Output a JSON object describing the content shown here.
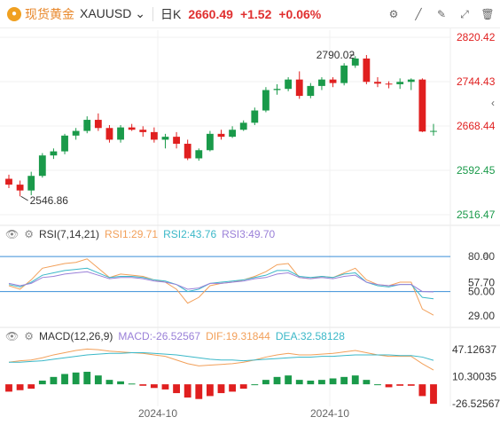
{
  "header": {
    "brand": "现货黄金",
    "symbol": "XAUUSD",
    "period": "日K",
    "price": "2660.49",
    "change": "+1.52",
    "change_pct": "+0.06%"
  },
  "price_axis": [
    "2820.42",
    "2744.43",
    "2668.44",
    "2592.45",
    "2516.47"
  ],
  "annotations": {
    "high": "2790.02",
    "low": "2546.86"
  },
  "rsi": {
    "name": "RSI(7,14,21)",
    "rsi1": "RSI1:29.71",
    "rsi2": "RSI2:43.76",
    "rsi3": "RSI3:49.70",
    "axis": [
      "80.00",
      "57.70",
      "50.00",
      "29.00"
    ],
    "axis_top_overlap": "80.40"
  },
  "macd": {
    "name": "MACD(12,26,9)",
    "macd": "MACD:-26.52567",
    "dif": "DIF:19.31844",
    "dea": "DEA:32.58128",
    "axis": [
      "47.12637",
      "10.30035",
      "-26.52567"
    ]
  },
  "xaxis": [
    "2024-10",
    "2024-10"
  ],
  "colors": {
    "up": "#1a9a4a",
    "down": "#e01f1f",
    "rsi1": "#f2a05a",
    "rsi2": "#3bb8c8",
    "rsi3": "#9a80d8",
    "dif": "#f2a05a",
    "dea": "#3bb8c8"
  },
  "chart_data": {
    "type": "candlestick",
    "ylim": [
      2516.47,
      2820.42
    ],
    "candles": [
      [
        2578,
        2585,
        2562,
        2568
      ],
      [
        2568,
        2575,
        2548,
        2558
      ],
      [
        2558,
        2590,
        2550,
        2583
      ],
      [
        2583,
        2622,
        2580,
        2618
      ],
      [
        2618,
        2630,
        2612,
        2625
      ],
      [
        2625,
        2655,
        2620,
        2652
      ],
      [
        2652,
        2665,
        2645,
        2660
      ],
      [
        2660,
        2685,
        2656,
        2679
      ],
      [
        2679,
        2690,
        2660,
        2665
      ],
      [
        2665,
        2670,
        2640,
        2645
      ],
      [
        2645,
        2670,
        2640,
        2666
      ],
      [
        2666,
        2672,
        2660,
        2662
      ],
      [
        2662,
        2668,
        2650,
        2658
      ],
      [
        2658,
        2666,
        2640,
        2645
      ],
      [
        2645,
        2655,
        2630,
        2650
      ],
      [
        2650,
        2658,
        2630,
        2638
      ],
      [
        2638,
        2645,
        2610,
        2613
      ],
      [
        2613,
        2630,
        2609,
        2627
      ],
      [
        2627,
        2660,
        2625,
        2655
      ],
      [
        2655,
        2662,
        2645,
        2650
      ],
      [
        2650,
        2668,
        2648,
        2662
      ],
      [
        2662,
        2678,
        2660,
        2674
      ],
      [
        2674,
        2700,
        2670,
        2695
      ],
      [
        2695,
        2735,
        2692,
        2730
      ],
      [
        2730,
        2740,
        2722,
        2732
      ],
      [
        2732,
        2752,
        2728,
        2748
      ],
      [
        2748,
        2762,
        2715,
        2720
      ],
      [
        2720,
        2742,
        2716,
        2737
      ],
      [
        2737,
        2752,
        2730,
        2748
      ],
      [
        2748,
        2752,
        2735,
        2742
      ],
      [
        2742,
        2776,
        2738,
        2772
      ],
      [
        2772,
        2788,
        2768,
        2784
      ],
      [
        2784,
        2790,
        2740,
        2744
      ],
      [
        2744,
        2752,
        2735,
        2741
      ],
      [
        2741,
        2745,
        2733,
        2740
      ],
      [
        2740,
        2750,
        2732,
        2744
      ],
      [
        2744,
        2750,
        2730,
        2748
      ],
      [
        2748,
        2750,
        2658,
        2659
      ],
      [
        2659,
        2672,
        2652,
        2660
      ]
    ],
    "rsi_series": {
      "rsi1": [
        55,
        52,
        60,
        70,
        72,
        74,
        75,
        78,
        70,
        62,
        65,
        64,
        63,
        60,
        58,
        52,
        40,
        45,
        55,
        57,
        58,
        60,
        63,
        67,
        73,
        74,
        62,
        61,
        63,
        62,
        66,
        70,
        60,
        56,
        55,
        58,
        58,
        35,
        29.71
      ],
      "rsi2": [
        56,
        54,
        58,
        64,
        66,
        68,
        69,
        70,
        66,
        62,
        63,
        63,
        62,
        60,
        59,
        56,
        50,
        52,
        57,
        58,
        59,
        60,
        62,
        64,
        68,
        68,
        63,
        62,
        63,
        62,
        65,
        66,
        58,
        55,
        54,
        56,
        56,
        45,
        43.76
      ],
      "rsi3": [
        57,
        55,
        57,
        62,
        63,
        65,
        66,
        67,
        64,
        61,
        62,
        62,
        61,
        59,
        58,
        56,
        52,
        53,
        57,
        57,
        58,
        59,
        61,
        62,
        65,
        66,
        62,
        61,
        62,
        61,
        63,
        64,
        58,
        56,
        55,
        56,
        56,
        50,
        49.7
      ]
    },
    "macd_series": {
      "dif": [
        30,
        32,
        33,
        36,
        40,
        43,
        46,
        48,
        47,
        45,
        44,
        43,
        42,
        40,
        38,
        33,
        28,
        25,
        26,
        27,
        28,
        30,
        33,
        37,
        40,
        42,
        40,
        40,
        41,
        42,
        44,
        46,
        43,
        40,
        38,
        38,
        38,
        28,
        19.32
      ],
      "dea": [
        30,
        30,
        31,
        32,
        34,
        36,
        38,
        40,
        41,
        42,
        42,
        43,
        43,
        42,
        41,
        40,
        38,
        36,
        34,
        33,
        33,
        32,
        33,
        34,
        35,
        36,
        37,
        37,
        38,
        38,
        39,
        40,
        40,
        40,
        40,
        39,
        39,
        37,
        32.58
      ],
      "hist": [
        -10,
        -8,
        -6,
        5,
        10,
        14,
        16,
        17,
        12,
        6,
        4,
        1,
        -2,
        -5,
        -7,
        -12,
        -18,
        -20,
        -16,
        -12,
        -10,
        -6,
        0,
        6,
        10,
        12,
        6,
        5,
        6,
        8,
        10,
        12,
        6,
        0,
        -4,
        -2,
        -2,
        -16,
        -26.53
      ]
    }
  }
}
